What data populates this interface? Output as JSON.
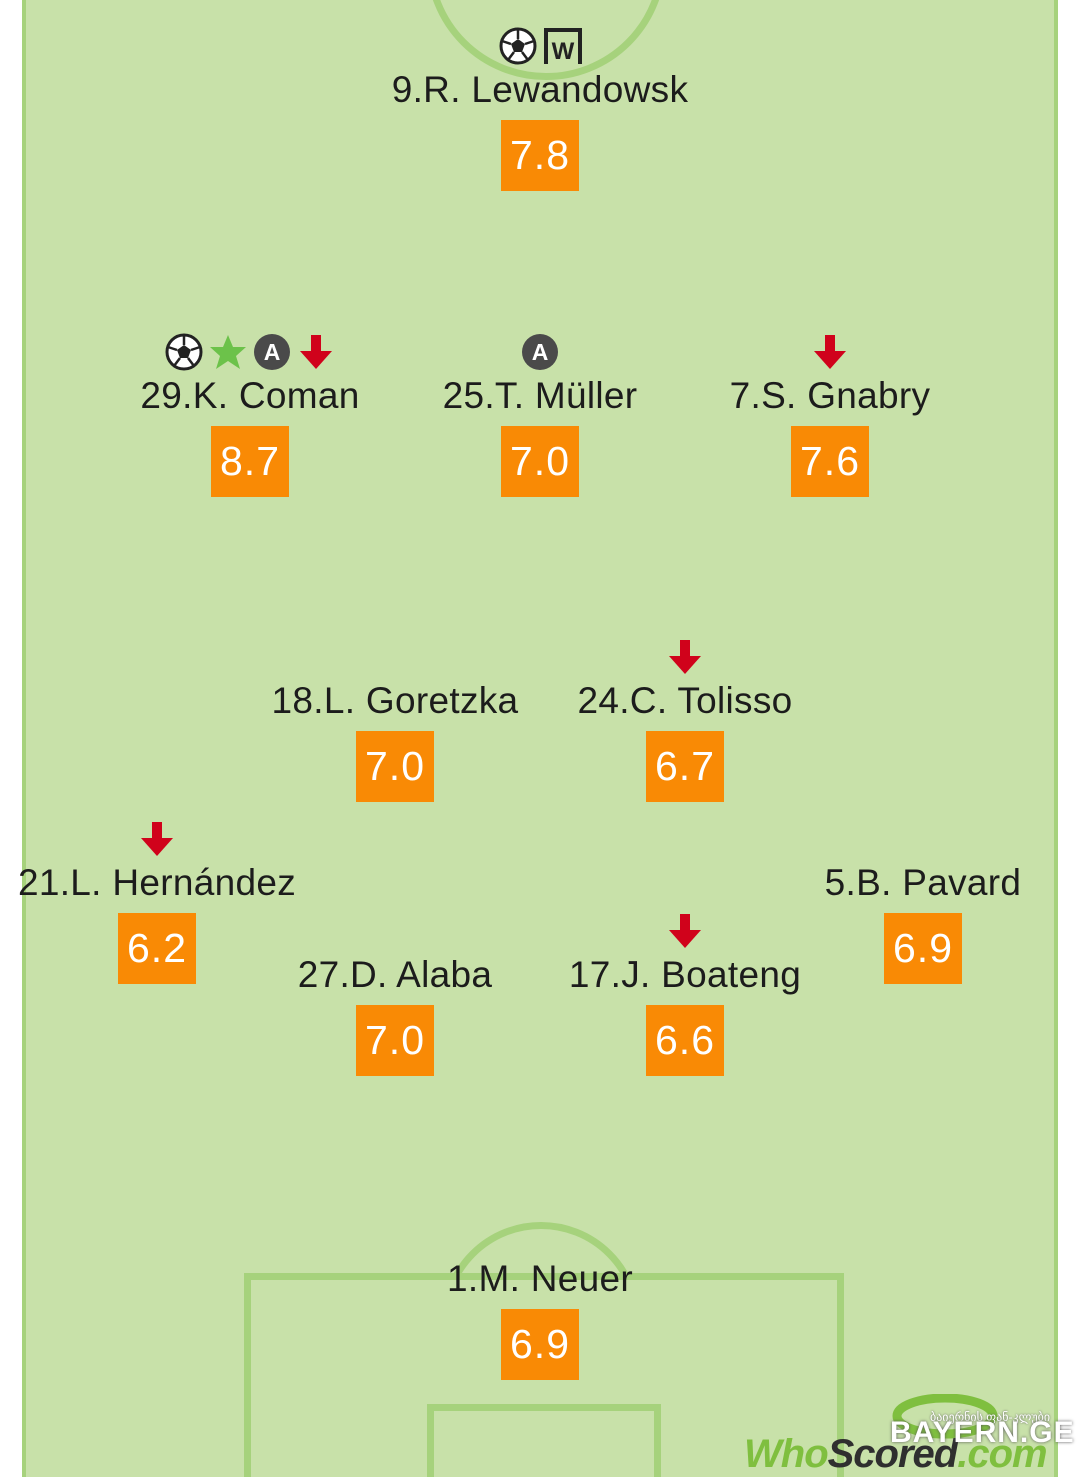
{
  "players": [
    {
      "id": "lewandowski",
      "label": "9.R. Lewandowsk",
      "rating": "7.8",
      "icons": [
        "ball-icon",
        "woodwork-icon"
      ]
    },
    {
      "id": "coman",
      "label": "29.K. Coman",
      "rating": "8.7",
      "icons": [
        "ball-icon",
        "star-icon",
        "assist-icon",
        "sub-off-arrow-icon"
      ]
    },
    {
      "id": "muller",
      "label": "25.T. Müller",
      "rating": "7.0",
      "icons": [
        "assist-icon"
      ]
    },
    {
      "id": "gnabry",
      "label": "7.S. Gnabry",
      "rating": "7.6",
      "icons": [
        "sub-off-arrow-icon"
      ]
    },
    {
      "id": "goretzka",
      "label": "18.L. Goretzka",
      "rating": "7.0",
      "icons": []
    },
    {
      "id": "tolisso",
      "label": "24.C. Tolisso",
      "rating": "6.7",
      "icons": [
        "sub-off-arrow-icon"
      ]
    },
    {
      "id": "hernandez",
      "label": "21.L. Hernández",
      "rating": "6.2",
      "icons": [
        "sub-off-arrow-icon"
      ]
    },
    {
      "id": "pavard",
      "label": "5.B. Pavard",
      "rating": "6.9",
      "icons": []
    },
    {
      "id": "alaba",
      "label": "27.D. Alaba",
      "rating": "7.0",
      "icons": []
    },
    {
      "id": "boateng",
      "label": "17.J. Boateng",
      "rating": "6.6",
      "icons": [
        "sub-off-arrow-icon"
      ]
    },
    {
      "id": "neuer",
      "label": "1.M. Neuer",
      "rating": "6.9",
      "icons": []
    }
  ],
  "watermark": {
    "who": "Who",
    "scored": "Scored",
    "com": ".com",
    "bayern": "BAYERN.GE",
    "bayern_sub": "ბაიერნის ფან-კლუბი"
  },
  "colors": {
    "pitch": "#c8e1a9",
    "pitch_lines": "#a6d27c",
    "rating_bg": "#f98a05",
    "sub_arrow": "#d0021b",
    "star": "#6cc24a",
    "assist_badge": "#4a4a4a"
  }
}
